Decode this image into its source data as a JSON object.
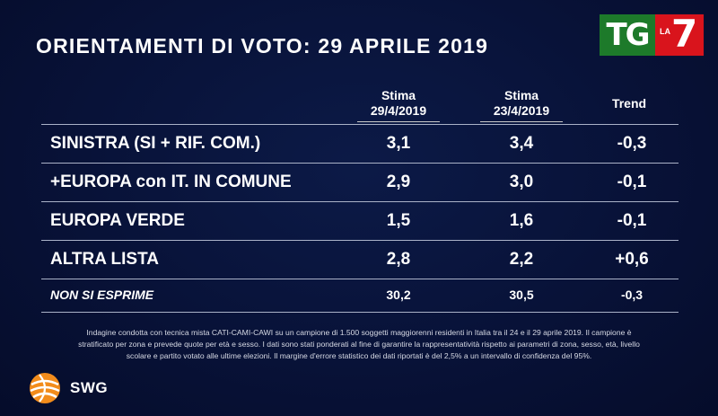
{
  "title": "ORIENTAMENTI DI VOTO: 29 APRILE 2019",
  "broadcaster_logo": {
    "tg": "TG",
    "la": "LA",
    "seven": "7",
    "colors": {
      "tg": "#1d7a2a",
      "la7": "#d9141c"
    }
  },
  "columns": {
    "c1": {
      "line1": "Stima",
      "line2": "29/4/2019"
    },
    "c2": {
      "line1": "Stima",
      "line2": "23/4/2019"
    },
    "trend": "Trend"
  },
  "rows": [
    {
      "label": "SINISTRA (SI + RIF. COM.)",
      "v1": "3,1",
      "v2": "3,4",
      "trend": "-0,3"
    },
    {
      "label": "+EUROPA con IT. IN COMUNE",
      "v1": "2,9",
      "v2": "3,0",
      "trend": "-0,1"
    },
    {
      "label": "EUROPA VERDE",
      "v1": "1,5",
      "v2": "1,6",
      "trend": "-0,1"
    },
    {
      "label": "ALTRA LISTA",
      "v1": "2,8",
      "v2": "2,2",
      "trend": "+0,6"
    },
    {
      "label": "NON SI ESPRIME",
      "v1": "30,2",
      "v2": "30,5",
      "trend": "-0,3"
    }
  ],
  "footnote": {
    "line1": "Indagine condotta con tecnica mista CATI-CAMI-CAWI su un campione di 1.500 soggetti maggiorenni residenti in Italia tra il 24 e il 29 aprile 2019. Il campione è",
    "line2": "stratificato per zona e prevede quote per età e sesso. I dati sono stati ponderati al fine di garantire la rappresentatività rispetto ai parametri di zona, sesso, età, livello",
    "line3": "scolare e partito votato alle ultime elezioni. Il margine d'errore statistico dei dati riportati è del 2,5% a un intervallo di confidenza del 95%."
  },
  "pollster_logo": {
    "name": "SWG",
    "icon": "swg-globe-icon",
    "colors": {
      "primary": "#f28c1b",
      "secondary": "#ffffff"
    }
  },
  "colors": {
    "background": "#071133",
    "text": "#ffffff",
    "divider": "#aab2c8"
  }
}
